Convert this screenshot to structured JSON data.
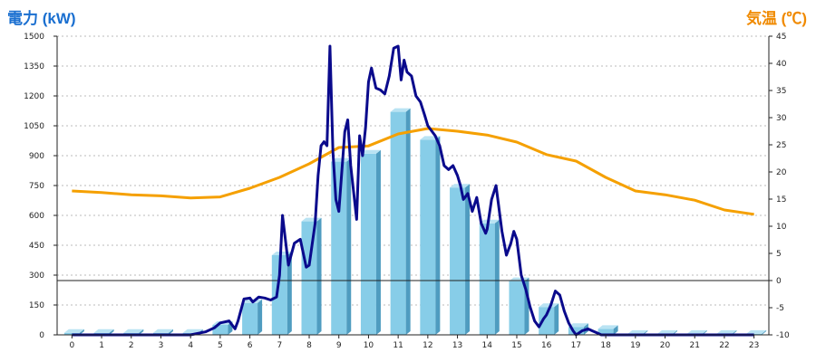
{
  "chart_data": {
    "type": "bar",
    "title_left": "電力 (kW)",
    "title_right": "気温 (℃)",
    "categories": [
      "0",
      "1",
      "2",
      "3",
      "4",
      "5",
      "6",
      "7",
      "8",
      "9",
      "10",
      "11",
      "12",
      "13",
      "14",
      "15",
      "16",
      "17",
      "18",
      "19",
      "20",
      "21",
      "22",
      "23"
    ],
    "y_left": {
      "min": 0,
      "max": 1500,
      "ticks": [
        0,
        150,
        300,
        450,
        600,
        750,
        900,
        1050,
        1200,
        1350,
        1500
      ]
    },
    "y_right": {
      "min": -10,
      "max": 45,
      "ticks": [
        -10,
        -5,
        0,
        5,
        10,
        15,
        20,
        25,
        30,
        35,
        40,
        45
      ]
    },
    "grid": true,
    "bars": {
      "color": "#87cde8",
      "values": [
        10,
        10,
        10,
        10,
        10,
        50,
        160,
        400,
        570,
        870,
        910,
        1120,
        980,
        740,
        560,
        270,
        140,
        40,
        30,
        5,
        5,
        5,
        5,
        5
      ]
    },
    "temperature": {
      "color": "#f5a000",
      "x": [
        0,
        1,
        2,
        3,
        4,
        5,
        6,
        7,
        8,
        9,
        10,
        11,
        12,
        13,
        14,
        15,
        16,
        17,
        18,
        19,
        20,
        21,
        22,
        23
      ],
      "values": [
        16.5,
        16.2,
        15.8,
        15.6,
        15.2,
        15.4,
        17,
        19,
        21.5,
        24.5,
        24.8,
        27,
        28,
        27.5,
        26.8,
        25.5,
        23.2,
        22,
        19,
        16.5,
        15.8,
        14.8,
        13,
        12.2
      ]
    },
    "power_detail": {
      "color": "#0a0a8c",
      "x": [
        0,
        1,
        2,
        3,
        4,
        4.5,
        4.8,
        5,
        5.3,
        5.5,
        5.6,
        5.8,
        6,
        6.1,
        6.3,
        6.5,
        6.7,
        6.9,
        7,
        7.1,
        7.3,
        7.5,
        7.7,
        7.9,
        8,
        8.2,
        8.3,
        8.4,
        8.5,
        8.6,
        8.7,
        8.8,
        8.9,
        9,
        9.2,
        9.3,
        9.4,
        9.6,
        9.7,
        9.8,
        9.9,
        10,
        10.1,
        10.25,
        10.4,
        10.55,
        10.7,
        10.85,
        11,
        11.1,
        11.2,
        11.3,
        11.45,
        11.6,
        11.75,
        11.9,
        12,
        12.1,
        12.25,
        12.4,
        12.55,
        12.7,
        12.85,
        13,
        13.1,
        13.2,
        13.35,
        13.5,
        13.65,
        13.8,
        13.95,
        14,
        14.15,
        14.3,
        14.5,
        14.65,
        14.8,
        14.9,
        15,
        15.15,
        15.3,
        15.45,
        15.6,
        15.75,
        15.9,
        16,
        16.15,
        16.3,
        16.45,
        16.6,
        16.75,
        16.9,
        17,
        17.2,
        17.4,
        17.55,
        17.7,
        17.85,
        18,
        18.5,
        19,
        20,
        21,
        22,
        23
      ],
      "values": [
        0,
        0,
        0,
        0,
        0,
        15,
        35,
        60,
        70,
        30,
        70,
        180,
        185,
        165,
        190,
        185,
        175,
        190,
        300,
        600,
        350,
        460,
        480,
        340,
        350,
        560,
        800,
        950,
        970,
        950,
        1450,
        920,
        680,
        620,
        1020,
        1080,
        850,
        580,
        1000,
        900,
        1040,
        1270,
        1340,
        1240,
        1230,
        1210,
        1300,
        1440,
        1450,
        1280,
        1380,
        1320,
        1300,
        1200,
        1170,
        1100,
        1050,
        1030,
        1000,
        950,
        850,
        830,
        850,
        800,
        750,
        680,
        710,
        620,
        690,
        560,
        510,
        530,
        680,
        750,
        520,
        400,
        460,
        520,
        480,
        300,
        230,
        140,
        70,
        40,
        80,
        100,
        150,
        220,
        200,
        120,
        60,
        20,
        0,
        20,
        30,
        20,
        10,
        0,
        0,
        0,
        0,
        0,
        0,
        0,
        0
      ]
    }
  }
}
